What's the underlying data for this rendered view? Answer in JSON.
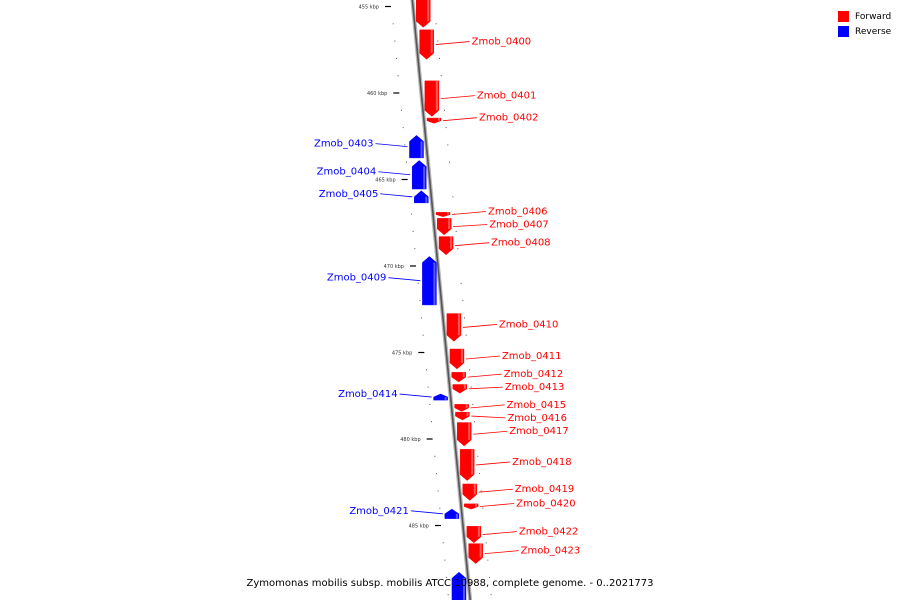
{
  "legend": {
    "forward_label": "Forward",
    "forward_color": "#ff0000",
    "reverse_label": "Reverse",
    "reverse_color": "#0000ff"
  },
  "caption": "Zymomonas mobilis subsp. mobilis ATCC 10988, complete genome. - 0..2021773",
  "kbp_marks": [
    {
      "kbp": 455,
      "label": "455 kbp"
    },
    {
      "kbp": 460,
      "label": "460 kbp"
    },
    {
      "kbp": 465,
      "label": "465 kbp"
    },
    {
      "kbp": 470,
      "label": "470 kbp"
    },
    {
      "kbp": 475,
      "label": "475 kbp"
    },
    {
      "kbp": 480,
      "label": "480 kbp"
    },
    {
      "kbp": 485,
      "label": "485 kbp"
    }
  ],
  "genes": [
    {
      "name": "Zmob_0400",
      "strand": "forward",
      "start_kbp": 456.35,
      "end_kbp": 458.05,
      "labeled": true
    },
    {
      "name": "Zmob_0401",
      "strand": "forward",
      "start_kbp": 459.3,
      "end_kbp": 461.35,
      "labeled": true
    },
    {
      "name": "Zmob_0402",
      "strand": "forward",
      "start_kbp": 461.45,
      "end_kbp": 461.75,
      "labeled": true
    },
    {
      "name": "Zmob_0403",
      "strand": "reverse",
      "start_kbp": 462.45,
      "end_kbp": 463.75,
      "labeled": true
    },
    {
      "name": "Zmob_0404",
      "strand": "reverse",
      "start_kbp": 463.9,
      "end_kbp": 465.55,
      "labeled": true
    },
    {
      "name": "Zmob_0405",
      "strand": "reverse",
      "start_kbp": 465.65,
      "end_kbp": 466.35,
      "labeled": true
    },
    {
      "name": "Zmob_0406",
      "strand": "forward",
      "start_kbp": 466.9,
      "end_kbp": 467.15,
      "labeled": true
    },
    {
      "name": "Zmob_0407",
      "strand": "forward",
      "start_kbp": 467.25,
      "end_kbp": 468.2,
      "labeled": true
    },
    {
      "name": "Zmob_0408",
      "strand": "forward",
      "start_kbp": 468.3,
      "end_kbp": 469.35,
      "labeled": true
    },
    {
      "name": "Zmob_0409",
      "strand": "reverse",
      "start_kbp": 469.45,
      "end_kbp": 472.25,
      "labeled": true
    },
    {
      "name": "Zmob_0410",
      "strand": "forward",
      "start_kbp": 472.75,
      "end_kbp": 474.35,
      "labeled": true
    },
    {
      "name": "Zmob_0411",
      "strand": "forward",
      "start_kbp": 474.8,
      "end_kbp": 475.95,
      "labeled": true
    },
    {
      "name": "Zmob_0412",
      "strand": "forward",
      "start_kbp": 476.15,
      "end_kbp": 476.7,
      "labeled": true
    },
    {
      "name": "Zmob_0413",
      "strand": "forward",
      "start_kbp": 476.85,
      "end_kbp": 477.35,
      "labeled": true
    },
    {
      "name": "Zmob_0414",
      "strand": "reverse",
      "start_kbp": 477.4,
      "end_kbp": 477.75,
      "labeled": true
    },
    {
      "name": "Zmob_0415",
      "strand": "forward",
      "start_kbp": 478.0,
      "end_kbp": 478.4,
      "labeled": true
    },
    {
      "name": "Zmob_0416",
      "strand": "forward",
      "start_kbp": 478.45,
      "end_kbp": 478.9,
      "labeled": true
    },
    {
      "name": "Zmob_0417",
      "strand": "forward",
      "start_kbp": 479.05,
      "end_kbp": 480.4,
      "labeled": true
    },
    {
      "name": "Zmob_0418",
      "strand": "forward",
      "start_kbp": 480.6,
      "end_kbp": 482.4,
      "labeled": true
    },
    {
      "name": "Zmob_0419",
      "strand": "forward",
      "start_kbp": 482.6,
      "end_kbp": 483.55,
      "labeled": true
    },
    {
      "name": "Zmob_0420",
      "strand": "forward",
      "start_kbp": 483.75,
      "end_kbp": 484.05,
      "labeled": true
    },
    {
      "name": "Zmob_0421",
      "strand": "reverse",
      "start_kbp": 484.05,
      "end_kbp": 484.6,
      "labeled": true
    },
    {
      "name": "Zmob_0422",
      "strand": "forward",
      "start_kbp": 485.05,
      "end_kbp": 486.0,
      "labeled": true
    },
    {
      "name": "Zmob_0423",
      "strand": "forward",
      "start_kbp": 486.05,
      "end_kbp": 487.2,
      "labeled": true
    },
    {
      "name": "",
      "strand": "forward",
      "start_kbp": 454.1,
      "end_kbp": 456.2,
      "labeled": false
    },
    {
      "name": "",
      "strand": "reverse",
      "start_kbp": 487.7,
      "end_kbp": 489.5,
      "labeled": false
    }
  ]
}
